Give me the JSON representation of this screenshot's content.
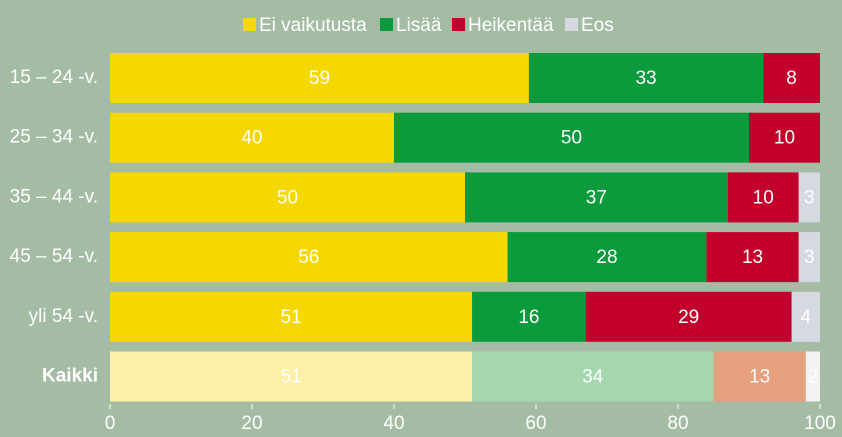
{
  "chart_data": {
    "type": "stacked_bar_horizontal",
    "categories": [
      "15 – 24 -v.",
      "25 – 34 -v.",
      "35 – 44 -v.",
      "45 – 54 -v.",
      "yli 54 -v.",
      "Kaikki"
    ],
    "highlight_category": "Kaikki",
    "series": [
      {
        "name": "Ei vaikutusta",
        "color": "#f5d800",
        "highlight_color": "#fdf0a6",
        "values": [
          59,
          40,
          50,
          56,
          51,
          51
        ]
      },
      {
        "name": "Lisää",
        "color": "#0b9a3c",
        "highlight_color": "#a6d6ae",
        "values": [
          33,
          50,
          37,
          28,
          16,
          34
        ]
      },
      {
        "name": "Heikentää",
        "color": "#c3002b",
        "highlight_color": "#e6a07e",
        "values": [
          8,
          10,
          10,
          13,
          29,
          13
        ]
      },
      {
        "name": "Eos",
        "color": "#d6d9e2",
        "highlight_color": "#f2f2f2",
        "values": [
          null,
          null,
          3,
          3,
          4,
          2
        ]
      }
    ],
    "xlim": [
      0,
      100
    ],
    "xticks": [
      0,
      20,
      40,
      60,
      80,
      100
    ]
  }
}
